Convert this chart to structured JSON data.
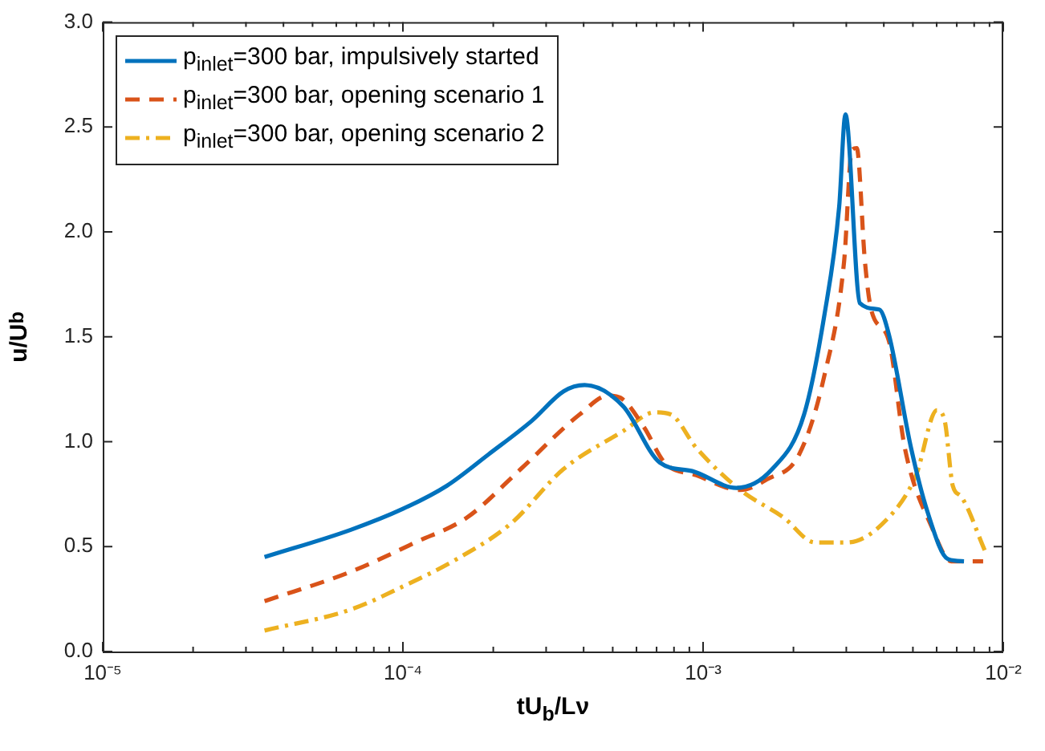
{
  "chart_data": {
    "type": "line",
    "xlabel": "tU$_{b}$/Lν",
    "ylabel": "u/U$_{b}$",
    "log": "x",
    "grid": false,
    "legend": "top left",
    "marker": "none",
    "xlim": [
      1e-05,
      0.01
    ],
    "xticks": [
      {
        "value": 1e-05,
        "label": "10⁻⁵"
      },
      {
        "value": 2e-05,
        "label": null
      },
      {
        "value": 3e-05,
        "label": null
      },
      {
        "value": 4e-05,
        "label": null
      },
      {
        "value": 5e-05,
        "label": null
      },
      {
        "value": 6e-05,
        "label": null
      },
      {
        "value": 7e-05,
        "label": null
      },
      {
        "value": 8e-05,
        "label": null
      },
      {
        "value": 9e-05,
        "label": null
      },
      {
        "value": 0.0001,
        "label": "10⁻⁴"
      },
      {
        "value": 0.0002,
        "label": null
      },
      {
        "value": 0.0003,
        "label": null
      },
      {
        "value": 0.0004,
        "label": null
      },
      {
        "value": 0.0005,
        "label": null
      },
      {
        "value": 0.0006,
        "label": null
      },
      {
        "value": 0.0007,
        "label": null
      },
      {
        "value": 0.0008,
        "label": null
      },
      {
        "value": 0.0009,
        "label": null
      },
      {
        "value": 0.001,
        "label": "10⁻³"
      },
      {
        "value": 0.002,
        "label": null
      },
      {
        "value": 0.003,
        "label": null
      },
      {
        "value": 0.004,
        "label": null
      },
      {
        "value": 0.005,
        "label": null
      },
      {
        "value": 0.006,
        "label": null
      },
      {
        "value": 0.007,
        "label": null
      },
      {
        "value": 0.008,
        "label": null
      },
      {
        "value": 0.009,
        "label": null
      },
      {
        "value": 0.01,
        "label": "10⁻²"
      }
    ],
    "ylim": [
      0,
      3
    ],
    "yticks": [
      {
        "value": 0,
        "label": "0.0"
      },
      {
        "value": 0.5,
        "label": "0.5"
      },
      {
        "value": 1,
        "label": "1.0"
      },
      {
        "value": 1.5,
        "label": "1.5"
      },
      {
        "value": 2,
        "label": "2.0"
      },
      {
        "value": 2.5,
        "label": "2.5"
      },
      {
        "value": 3,
        "label": "3.0"
      }
    ],
    "series": [
      {
        "name": "p$_{inlet}$=300 bar, impulsively started",
        "color": "#0072bd",
        "line_style": "solid",
        "x": [
          3.46e-05,
          6.7e-05,
          0.0001,
          0.00014,
          0.000193,
          0.000269,
          0.000343,
          0.000403,
          0.000541,
          0.000718,
          0.00092,
          0.00129,
          0.0017,
          0.00217,
          0.00254,
          0.00284,
          0.00298,
          0.00333,
          0.00386,
          0.00416,
          0.00493,
          0.00558,
          0.00655,
          0.0074
        ],
        "values": [
          0.45,
          0.58,
          0.68,
          0.79,
          0.94,
          1.1,
          1.24,
          1.27,
          1.17,
          0.9,
          0.86,
          0.78,
          0.87,
          1.13,
          1.61,
          2.12,
          2.56,
          1.66,
          1.63,
          1.51,
          0.97,
          0.67,
          0.44,
          0.43
        ]
      },
      {
        "name": "p$_{inlet}$=300 bar, opening scenario 1",
        "color": "#d95319",
        "line_style": "dashed",
        "x": [
          3.46e-05,
          6.7e-05,
          0.00011,
          0.000164,
          0.000247,
          0.000388,
          0.000484,
          0.00053,
          0.000635,
          0.000745,
          0.00095,
          0.00133,
          0.00163,
          0.00209,
          0.00254,
          0.00295,
          0.00313,
          0.00325,
          0.00346,
          0.00363,
          0.00416,
          0.0047,
          0.00579,
          0.00671,
          0.00857
        ],
        "values": [
          0.24,
          0.38,
          0.52,
          0.64,
          0.87,
          1.13,
          1.22,
          1.21,
          1.07,
          0.9,
          0.84,
          0.77,
          0.82,
          0.94,
          1.32,
          1.86,
          2.39,
          2.4,
          1.86,
          1.63,
          1.48,
          0.97,
          0.59,
          0.43,
          0.43
        ]
      },
      {
        "name": "p$_{inlet}$=300 bar, opening scenario 2",
        "color": "#edb120",
        "line_style": "dashdot",
        "x": [
          3.46e-05,
          6.7e-05,
          0.0001,
          0.000151,
          0.000229,
          0.000343,
          0.000541,
          0.00069,
          0.00078,
          0.00095,
          0.00133,
          0.00185,
          0.00236,
          0.00302,
          0.00416,
          0.00512,
          0.00601,
          0.00638,
          0.00679,
          0.00723,
          0.00869
        ],
        "values": [
          0.1,
          0.2,
          0.31,
          0.44,
          0.61,
          0.87,
          1.05,
          1.14,
          1.13,
          0.97,
          0.77,
          0.64,
          0.52,
          0.52,
          0.64,
          0.84,
          1.15,
          1.1,
          0.79,
          0.74,
          0.48
        ]
      }
    ]
  }
}
